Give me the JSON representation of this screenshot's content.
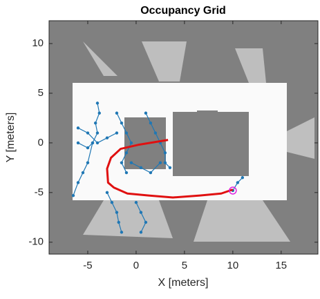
{
  "chart_data": {
    "type": "line",
    "title": "Occupancy Grid",
    "xlabel": "X [meters]",
    "ylabel": "Y [meters]",
    "xlim": [
      -9,
      18.8
    ],
    "ylim": [
      -11.2,
      12.3
    ],
    "xticks": [
      -5,
      0,
      5,
      10,
      15
    ],
    "yticks": [
      -10,
      -5,
      0,
      5,
      10
    ],
    "series": [
      {
        "color": "#1f77b4",
        "marker": "dot",
        "width": 1.2,
        "x": [
          -4,
          -3.8,
          -4.2,
          -4,
          -4.5,
          -5,
          -6,
          null,
          -4.5,
          -5,
          -5.5,
          -6,
          -6.5,
          null,
          -2,
          -1.5,
          -1,
          -0.5,
          -1,
          -1.5,
          -1,
          null,
          1,
          1.5,
          2,
          2.5,
          3,
          3,
          3.5,
          null,
          -3,
          -2.5,
          -2,
          -1.8,
          -1.5,
          null,
          0,
          0.5,
          1,
          0.5,
          null,
          -2,
          -3,
          -4,
          -5,
          -6,
          null,
          10,
          10.5,
          11,
          null,
          -0.5,
          0.5,
          1.5,
          2.5
        ],
        "values": [
          4,
          3,
          2,
          1,
          0,
          -0.5,
          0,
          null,
          0,
          -2,
          -3,
          -4,
          -5.3,
          null,
          3,
          2,
          1,
          0,
          -1,
          -2,
          -3,
          null,
          3,
          2,
          1,
          0,
          -1,
          -2,
          -2.5,
          null,
          -5,
          -6,
          -7,
          -8,
          -9,
          null,
          -6,
          -7,
          -8,
          -9,
          null,
          1,
          0.5,
          0,
          1,
          1.5,
          null,
          -4.8,
          -4,
          -3.5,
          null,
          -2,
          -2.5,
          -3,
          -2
        ]
      },
      {
        "color": "#e01010",
        "marker": "none",
        "width": 3,
        "x": [
          3.3,
          0.2,
          -1.6,
          -2.6,
          -3,
          -2.9,
          -2.3,
          -0.9,
          1.3,
          3.8,
          6.6,
          8.8,
          10
        ],
        "values": [
          0.3,
          -0.2,
          -0.6,
          -1.5,
          -2.6,
          -4,
          -4.5,
          -5.1,
          -5.3,
          -5.5,
          -5.3,
          -5.1,
          -4.7
        ]
      },
      {
        "color": "#e020e0",
        "marker": "circle",
        "width": 0,
        "x": [
          10
        ],
        "values": [
          -4.8
        ]
      }
    ]
  }
}
